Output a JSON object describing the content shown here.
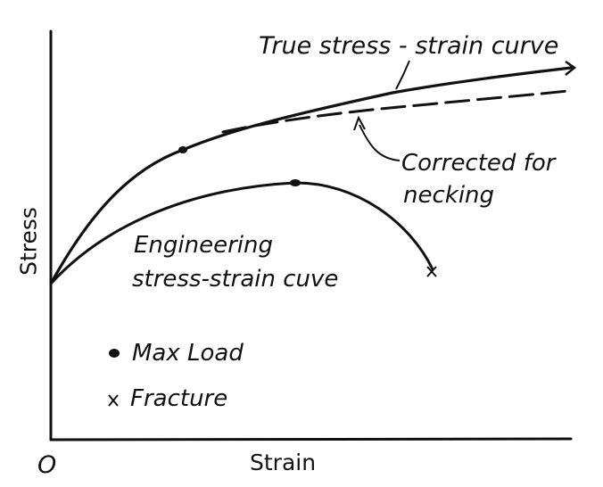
{
  "axes": {
    "y_label": "Stress",
    "x_label": "Strain",
    "origin_label": "O"
  },
  "curves": {
    "true_curve_label": "True stress - strain curve",
    "corrected_label_line1": "Corrected for",
    "corrected_label_line2": "necking",
    "engineering_label_line1": "Engineering",
    "engineering_label_line2": "stress-strain cuve"
  },
  "legend": {
    "max_load_label": "Max Load",
    "fracture_label": "Fracture",
    "max_load_marker": "•",
    "fracture_marker": "x"
  },
  "colors": {
    "ink": "#111111",
    "background": "#ffffff"
  }
}
